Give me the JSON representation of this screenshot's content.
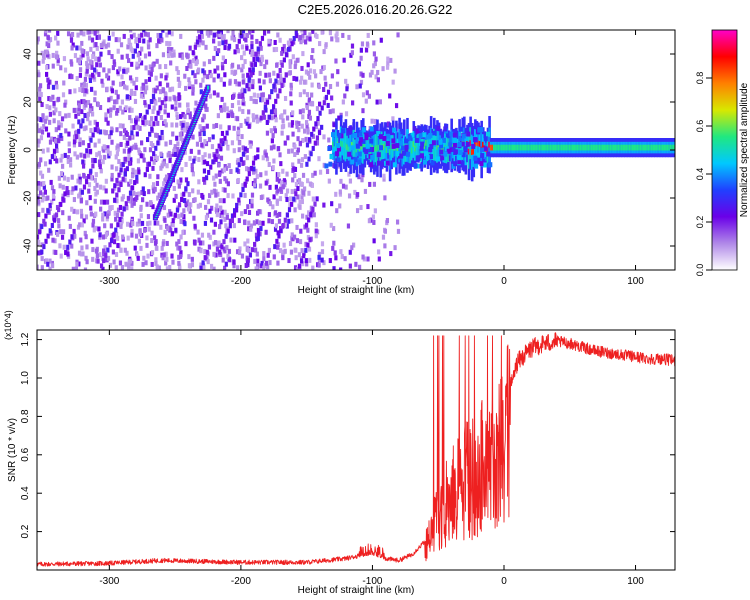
{
  "title": "C2E5.2026.016.20.26.G22",
  "chart_data": [
    {
      "type": "heatmap",
      "xlabel": "Height of straight line (km)",
      "ylabel": "Frequency (Hz)",
      "xlim": [
        -355,
        130
      ],
      "ylim": [
        -50,
        50
      ],
      "xticks": [
        -300,
        -200,
        -100,
        0,
        100
      ],
      "yticks": [
        -40,
        -20,
        0,
        20,
        40
      ],
      "colorbar": {
        "label": "Normalized spectral amplitude",
        "range": [
          0,
          1
        ],
        "ticks": [
          0.0,
          0.2,
          0.4,
          0.6,
          0.8
        ],
        "tick_labels": [
          "0.0",
          "0.2",
          "0.4",
          "0.6",
          "0.8"
        ],
        "colors": [
          "#ffffff",
          "#b088e8",
          "#6a00e8",
          "#2040ff",
          "#00c8ff",
          "#20e880",
          "#d8e800",
          "#ff8000",
          "#ff0000",
          "#ff00c8"
        ]
      },
      "features": [
        {
          "name": "noise field",
          "x_range": [
            -355,
            -80
          ],
          "freq_range": [
            -50,
            50
          ]
        },
        {
          "name": "oblique streak",
          "x_start": -265,
          "freq_start": -28,
          "x_end": -225,
          "freq_end": 26
        },
        {
          "name": "carrier band",
          "x_range": [
            -130,
            130
          ],
          "freq_center": 1,
          "freq_halfwidth": 4
        }
      ]
    },
    {
      "type": "line",
      "xlabel": "Height of straight line (km)",
      "ylabel": "SNR (10 * v/v)",
      "y_multiplier": "(x10^4)",
      "xlim": [
        -355,
        130
      ],
      "ylim": [
        0,
        1.25
      ],
      "xticks": [
        -300,
        -200,
        -100,
        0,
        100
      ],
      "yticks": [
        0.2,
        0.4,
        0.6,
        0.8,
        1.0,
        1.2
      ],
      "ytick_labels": [
        "0.2",
        "0.4",
        "0.6",
        "0.8",
        "1.0",
        "1.2"
      ],
      "color": "#ee2020",
      "series": [
        {
          "name": "SNR",
          "x": [
            -355,
            -300,
            -260,
            -200,
            -150,
            -120,
            -100,
            -90,
            -80,
            -70,
            -60,
            -55,
            -50,
            -45,
            -40,
            -35,
            -30,
            -25,
            -20,
            -15,
            -10,
            -5,
            0,
            5,
            10,
            20,
            30,
            40,
            50,
            60,
            70,
            80,
            90,
            100,
            110,
            120,
            130
          ],
          "values": [
            0.03,
            0.035,
            0.05,
            0.04,
            0.04,
            0.06,
            0.09,
            0.06,
            0.05,
            0.08,
            0.15,
            0.25,
            0.38,
            0.45,
            0.5,
            0.55,
            0.6,
            0.62,
            0.65,
            0.7,
            0.72,
            0.75,
            0.85,
            0.95,
            1.08,
            1.15,
            1.18,
            1.19,
            1.18,
            1.16,
            1.14,
            1.13,
            1.12,
            1.11,
            1.1,
            1.1,
            1.09
          ]
        }
      ]
    }
  ]
}
